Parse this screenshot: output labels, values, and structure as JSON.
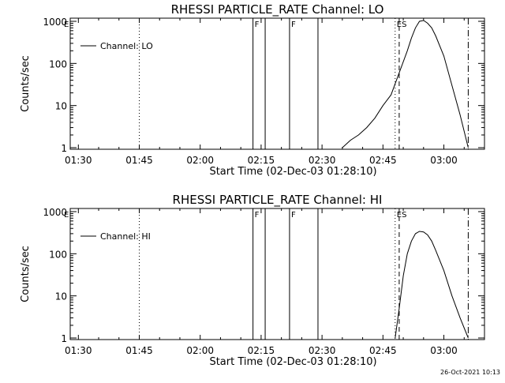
{
  "footer_timestamp": "26-Oct-2021 10:13",
  "colors": {
    "background": "#ffffff",
    "foreground": "#000000"
  },
  "chart_data": [
    {
      "type": "line",
      "title": "RHESSI PARTICLE_RATE Channel: LO",
      "xlabel": "Start Time (02-Dec-03 01:28:10)",
      "ylabel": "Counts/sec",
      "legend": {
        "label": "Channel: LO",
        "placement": "top-left"
      },
      "y_scale": "log",
      "ylim": [
        1,
        1000
      ],
      "xlim": [
        "01:28",
        "03:10"
      ],
      "x_ticks": [
        "01:30",
        "01:45",
        "02:00",
        "02:15",
        "02:30",
        "02:45",
        "03:00"
      ],
      "y_ticks": [
        "1",
        "10",
        "100",
        "1000"
      ],
      "flags": [
        {
          "label": "F",
          "time": "02:13",
          "style": "solid"
        },
        {
          "label": "F",
          "time": "02:22",
          "style": "solid"
        },
        {
          "label": "ES",
          "time": "02:48",
          "style": "dotted"
        }
      ],
      "vertical_lines": [
        {
          "time": "01:45",
          "style": "dotted"
        },
        {
          "time": "02:13",
          "style": "solid"
        },
        {
          "time": "02:16",
          "style": "solid"
        },
        {
          "time": "02:22",
          "style": "solid"
        },
        {
          "time": "02:29",
          "style": "solid"
        },
        {
          "time": "02:48",
          "style": "dotted"
        },
        {
          "time": "02:49",
          "style": "dashed"
        },
        {
          "time": "03:06",
          "style": "dash-dot"
        }
      ],
      "series": [
        {
          "name": "Channel: LO",
          "x": [
            "02:35",
            "02:37",
            "02:39",
            "02:41",
            "02:43",
            "02:45",
            "02:47",
            "02:49",
            "02:51",
            "02:52",
            "02:53",
            "02:54",
            "02:55",
            "02:56",
            "02:57",
            "02:58",
            "03:00",
            "03:02",
            "03:04",
            "03:06"
          ],
          "y": [
            1,
            1.5,
            2,
            3,
            5,
            10,
            18,
            60,
            200,
            400,
            700,
            1000,
            1050,
            900,
            700,
            450,
            150,
            30,
            6,
            1
          ]
        }
      ]
    },
    {
      "type": "line",
      "title": "RHESSI PARTICLE_RATE Channel: HI",
      "xlabel": "Start Time (02-Dec-03 01:28:10)",
      "ylabel": "Counts/sec",
      "legend": {
        "label": "Channel: HI",
        "placement": "top-left"
      },
      "y_scale": "log",
      "ylim": [
        1,
        1000
      ],
      "xlim": [
        "01:28",
        "03:10"
      ],
      "x_ticks": [
        "01:30",
        "01:45",
        "02:00",
        "02:15",
        "02:30",
        "02:45",
        "03:00"
      ],
      "y_ticks": [
        "1",
        "10",
        "100",
        "1000"
      ],
      "flags": [
        {
          "label": "F",
          "time": "02:13",
          "style": "solid"
        },
        {
          "label": "F",
          "time": "02:22",
          "style": "solid"
        },
        {
          "label": "ES",
          "time": "02:48",
          "style": "dotted"
        }
      ],
      "vertical_lines": [
        {
          "time": "01:45",
          "style": "dotted"
        },
        {
          "time": "02:13",
          "style": "solid"
        },
        {
          "time": "02:16",
          "style": "solid"
        },
        {
          "time": "02:22",
          "style": "solid"
        },
        {
          "time": "02:29",
          "style": "solid"
        },
        {
          "time": "02:48",
          "style": "dotted"
        },
        {
          "time": "02:49",
          "style": "dashed"
        },
        {
          "time": "03:06",
          "style": "dash-dot"
        }
      ],
      "series": [
        {
          "name": "Channel: HI",
          "x": [
            "02:48",
            "02:49",
            "02:50",
            "02:51",
            "02:52",
            "02:53",
            "02:54",
            "02:55",
            "02:56",
            "02:57",
            "02:58",
            "03:00",
            "03:02",
            "03:04",
            "03:06"
          ],
          "y": [
            1,
            5,
            30,
            100,
            200,
            300,
            340,
            330,
            280,
            200,
            120,
            40,
            10,
            3,
            1
          ]
        }
      ]
    }
  ]
}
